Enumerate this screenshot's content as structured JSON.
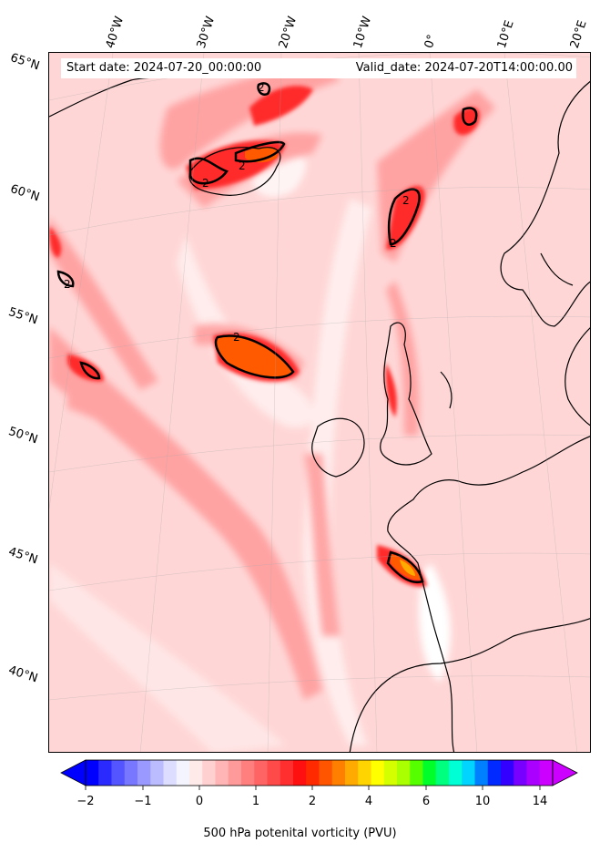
{
  "header": {
    "start_date": "Start date: 2024-07-20_00:00:00",
    "valid_date": "Valid_date: 2024-07-20T14:00:00.00"
  },
  "map": {
    "longitude_labels": [
      "40°W",
      "30°W",
      "20°W",
      "10°W",
      "0°",
      "10°E",
      "20°E"
    ],
    "latitude_labels": [
      "65°N",
      "60°N",
      "55°N",
      "50°N",
      "45°N",
      "40°N"
    ],
    "contour_label": "2",
    "background_color": "#ffd6d6",
    "coastline_color": "#000000"
  },
  "colorbar": {
    "label": "500 hPa potenital vorticity (PVU)",
    "tick_labels": [
      "−2",
      "−1",
      "0",
      "1",
      "2",
      "4",
      "6",
      "10",
      "14"
    ],
    "colors": [
      "#0000ff",
      "#2a2aff",
      "#5555ff",
      "#7777ff",
      "#9999ff",
      "#bbbbff",
      "#ddddff",
      "#f4f4ff",
      "#ffeaea",
      "#ffd0d0",
      "#ffb5b5",
      "#ff9a9a",
      "#ff7f7f",
      "#ff6464",
      "#ff4a4a",
      "#ff2f2f",
      "#ff1010",
      "#ff2a00",
      "#ff5500",
      "#ff7f00",
      "#ffaa00",
      "#ffd400",
      "#ffff00",
      "#d4ff00",
      "#aaff00",
      "#55ff00",
      "#00ff2a",
      "#00ff7f",
      "#00ffd4",
      "#00d4ff",
      "#007fff",
      "#002aff",
      "#3300ff",
      "#7700ff",
      "#aa00ff",
      "#cc00ff"
    ]
  }
}
